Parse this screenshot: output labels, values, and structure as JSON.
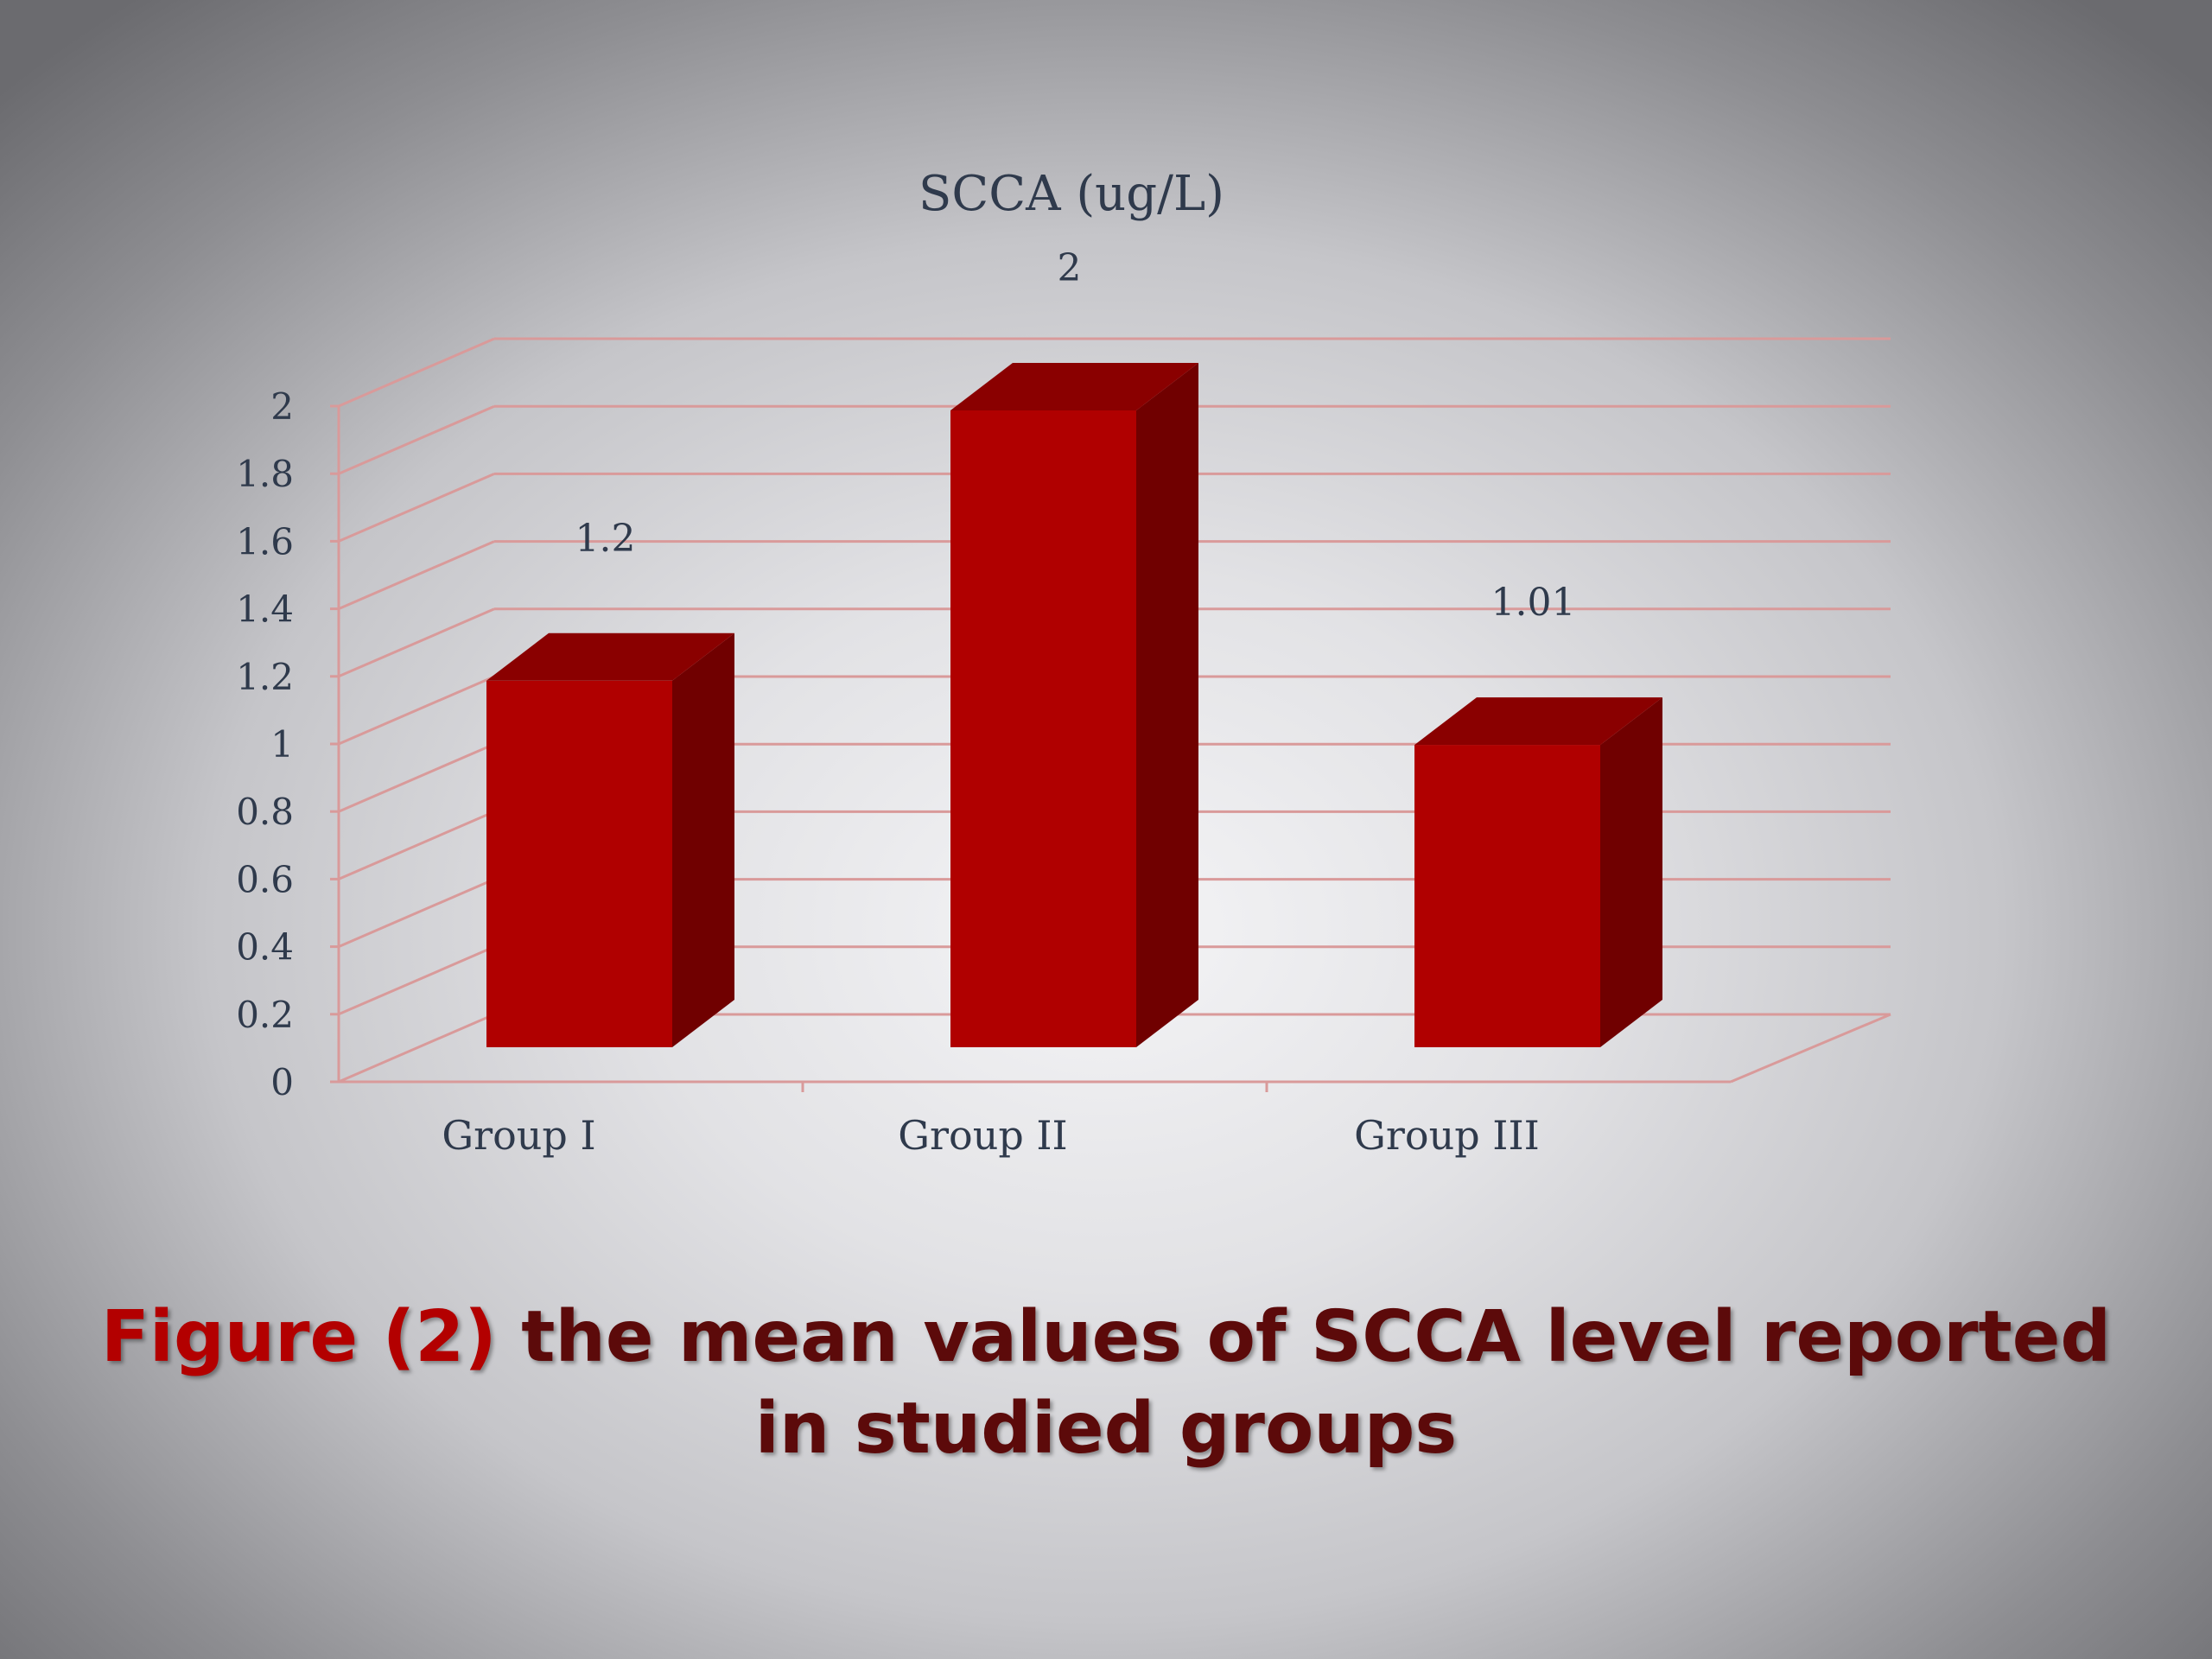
{
  "chart_data": {
    "type": "bar",
    "title": "SCCA (ug/L)",
    "categories": [
      "Group I",
      "Group II",
      "Group III"
    ],
    "values": [
      1.2,
      2,
      1.01
    ],
    "data_labels": [
      "1.2",
      "2",
      "1.01"
    ],
    "ylim": [
      0,
      2
    ],
    "yticks": [
      "0",
      "0.2",
      "0.4",
      "0.6",
      "0.8",
      "1",
      "1.2",
      "1.4",
      "1.6",
      "1.8",
      "2"
    ],
    "xlabel": "",
    "ylabel": "",
    "grid": true,
    "three_d": true,
    "legend": "none"
  },
  "caption": {
    "figure_label": "Figure (2)",
    "text": "the mean values of SCCA level reported in studied groups"
  },
  "colors": {
    "bar_front": "#b00000",
    "bar_top": "#8a0000",
    "bar_side": "#700000",
    "gridline": "#d99a9a",
    "caption_label": "#b30000",
    "caption_text": "#5c0a0a"
  }
}
